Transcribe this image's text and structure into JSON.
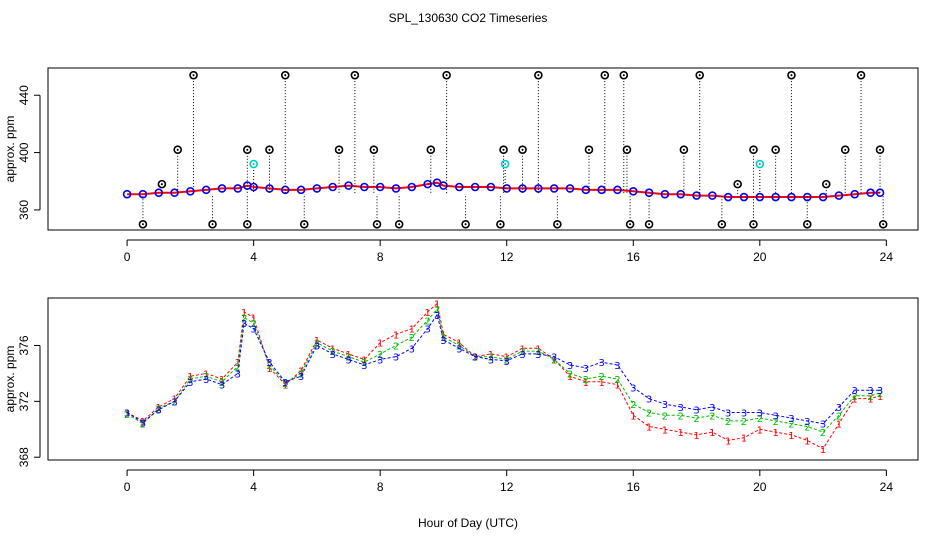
{
  "title": "SPL_130630  CO2 Timeseries",
  "xlabel": "Hour of Day (UTC)",
  "colors": {
    "series1": "#ff0000",
    "series2": "#00bb00",
    "series3": "#0000ff",
    "outlier": "#000000",
    "flagged": "#00cccc"
  },
  "chart_data": [
    {
      "type": "scatter",
      "name": "top-panel",
      "ylabel": "approx. ppm",
      "xlim": [
        -2.5,
        25
      ],
      "ylim": [
        346,
        459
      ],
      "x_ticks": [
        0,
        4,
        8,
        12,
        16,
        20,
        24
      ],
      "y_ticks": [
        360,
        400,
        440
      ],
      "series": [
        {
          "marker": "circle",
          "color": "#0000ff",
          "x": [
            0,
            0.5,
            1,
            1.5,
            2,
            2.5,
            3,
            3.5,
            3.8,
            4,
            4.5,
            5,
            5.5,
            6,
            6.5,
            7,
            7.5,
            8,
            8.5,
            9,
            9.5,
            9.8,
            10,
            10.5,
            11,
            11.5,
            12,
            12.5,
            13,
            13.5,
            14,
            14.5,
            15,
            15.5,
            16,
            16.5,
            17,
            17.5,
            18,
            18.5,
            19,
            19.5,
            20,
            20.5,
            21,
            21.5,
            22,
            22.5,
            23,
            23.5,
            23.8
          ],
          "y": [
            371,
            371,
            372,
            372,
            373,
            374,
            375,
            375,
            377,
            376,
            375,
            374,
            374,
            375,
            376,
            377,
            376,
            376,
            375,
            376,
            378,
            379,
            377,
            376,
            376,
            376,
            375,
            375,
            375,
            375,
            375,
            374,
            374,
            374,
            373,
            372,
            371,
            371,
            370,
            370,
            369,
            369,
            369,
            369,
            369,
            369,
            369,
            370,
            371,
            372,
            372
          ]
        },
        {
          "marker": "open-circle",
          "color": "#000000",
          "x": [
            1.1,
            1.6,
            2.1,
            3.8,
            4.5,
            5,
            6.7,
            7.2,
            7.8,
            9.6,
            10.1,
            11.9,
            12.5,
            13,
            14.6,
            15.1,
            15.7,
            15.8,
            17.6,
            18.1,
            19.3,
            19.8,
            20.5,
            21,
            22.1,
            22.7,
            23.2,
            23.8
          ],
          "y": [
            378,
            402,
            454,
            402,
            402,
            454,
            402,
            454,
            402,
            402,
            454,
            402,
            402,
            454,
            402,
            454,
            454,
            402,
            402,
            454,
            378,
            402,
            402,
            454,
            378,
            402,
            454,
            402
          ]
        },
        {
          "marker": "open-circle",
          "color": "#000000",
          "x": [
            0.5,
            2.7,
            3.8,
            5.6,
            7.9,
            8.6,
            10.7,
            11.8,
            13.6,
            15.9,
            16.5,
            18.8,
            19.8,
            21.5,
            23.9
          ],
          "y": [
            350,
            350,
            350,
            350,
            350,
            350,
            350,
            350,
            350,
            350,
            350,
            350,
            350,
            350,
            350
          ]
        },
        {
          "marker": "open-circle",
          "color": "#00cccc",
          "x": [
            4,
            11.95,
            20
          ],
          "y": [
            392,
            392,
            392
          ]
        }
      ]
    },
    {
      "type": "scatter",
      "name": "bottom-panel",
      "ylabel": "approx. ppm",
      "xlim": [
        -2.5,
        25
      ],
      "ylim": [
        367.8,
        379.4
      ],
      "x_ticks": [
        0,
        4,
        8,
        12,
        16,
        20,
        24
      ],
      "y_ticks": [
        368,
        372,
        376
      ],
      "series": [
        {
          "marker": "digit",
          "label": "1",
          "color": "#ff0000",
          "x": [
            0,
            0.5,
            1,
            1.5,
            2,
            2.5,
            3,
            3.5,
            3.7,
            4,
            4.5,
            5,
            5.5,
            6,
            6.5,
            7,
            7.5,
            8,
            8.5,
            9,
            9.5,
            9.8,
            10,
            10.5,
            11,
            11.5,
            12,
            12.5,
            13,
            13.5,
            14,
            14.5,
            15,
            15.5,
            16,
            16.5,
            17,
            17.5,
            18,
            18.5,
            19,
            19.5,
            20,
            20.5,
            21,
            21.5,
            22,
            22.5,
            23,
            23.5,
            23.8
          ],
          "y": [
            371.2,
            370.6,
            371.6,
            372.2,
            373.8,
            374.0,
            373.6,
            374.8,
            378.4,
            378.0,
            374.4,
            373.2,
            374.2,
            376.4,
            375.8,
            375.4,
            375.0,
            376.2,
            376.8,
            377.2,
            378.4,
            379.0,
            376.8,
            376.2,
            375.2,
            375.4,
            375.2,
            375.8,
            375.8,
            375.0,
            373.8,
            373.4,
            373.4,
            373.2,
            371.0,
            370.2,
            370.0,
            369.8,
            369.6,
            369.8,
            369.2,
            369.4,
            370.0,
            369.8,
            369.6,
            369.2,
            368.6,
            370.4,
            372.2,
            372.2,
            372.4
          ]
        },
        {
          "marker": "digit",
          "label": "2",
          "color": "#00bb00",
          "x": [
            0,
            0.5,
            1,
            1.5,
            2,
            2.5,
            3,
            3.5,
            3.7,
            4,
            4.5,
            5,
            5.5,
            6,
            6.5,
            7,
            7.5,
            8,
            8.5,
            9,
            9.5,
            9.8,
            10,
            10.5,
            11,
            11.5,
            12,
            12.5,
            13,
            13.5,
            14,
            14.5,
            15,
            15.5,
            16,
            16.5,
            17,
            17.5,
            18,
            18.5,
            19,
            19.5,
            20,
            20.5,
            21,
            21.5,
            22,
            22.5,
            23,
            23.5,
            23.8
          ],
          "y": [
            371.1,
            370.4,
            371.5,
            372.0,
            373.6,
            373.8,
            373.4,
            374.5,
            378.0,
            377.6,
            374.6,
            373.3,
            374.0,
            376.2,
            375.6,
            375.2,
            374.8,
            375.4,
            376.0,
            376.6,
            377.8,
            378.6,
            376.6,
            376.0,
            375.2,
            375.2,
            375.0,
            375.6,
            375.6,
            375.0,
            374.0,
            373.6,
            373.8,
            373.6,
            371.8,
            371.2,
            371.0,
            371.0,
            370.8,
            371.0,
            370.6,
            370.6,
            370.8,
            370.6,
            370.4,
            370.2,
            369.8,
            371.0,
            372.4,
            372.4,
            372.6
          ]
        },
        {
          "marker": "digit",
          "label": "3",
          "color": "#0000ff",
          "x": [
            0,
            0.5,
            1,
            1.5,
            2,
            2.5,
            3,
            3.5,
            3.7,
            4,
            4.5,
            5,
            5.5,
            6,
            6.5,
            7,
            7.5,
            8,
            8.5,
            9,
            9.5,
            9.8,
            10,
            10.5,
            11,
            11.5,
            12,
            12.5,
            13,
            13.5,
            14,
            14.5,
            15,
            15.5,
            16,
            16.5,
            17,
            17.5,
            18,
            18.5,
            19,
            19.5,
            20,
            20.5,
            21,
            21.5,
            22,
            22.5,
            23,
            23.5,
            23.8
          ],
          "y": [
            371.2,
            370.5,
            371.4,
            372.0,
            373.4,
            373.6,
            373.2,
            374.0,
            377.6,
            377.2,
            374.8,
            373.4,
            373.8,
            376.0,
            375.4,
            375.0,
            374.6,
            375.0,
            375.2,
            375.8,
            377.2,
            378.2,
            376.4,
            375.8,
            375.2,
            375.0,
            374.9,
            375.4,
            375.4,
            375.2,
            374.6,
            374.4,
            374.8,
            374.6,
            373.0,
            372.2,
            371.8,
            371.6,
            371.4,
            371.6,
            371.2,
            371.2,
            371.2,
            371.0,
            370.8,
            370.6,
            370.4,
            371.6,
            372.8,
            372.8,
            372.8
          ]
        }
      ]
    }
  ]
}
